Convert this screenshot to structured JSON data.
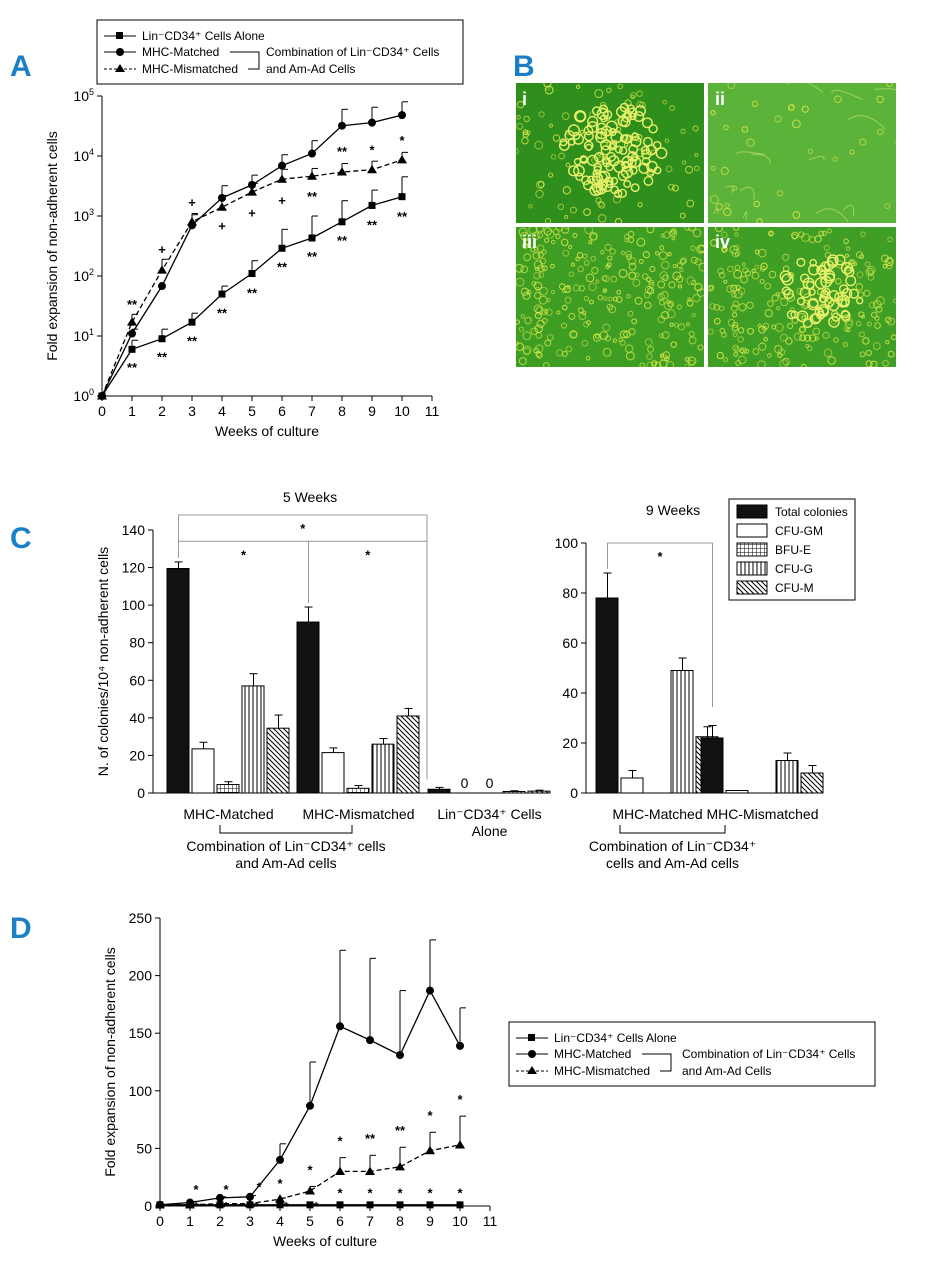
{
  "panel_letters": {
    "a": "A",
    "b": "B",
    "c": "C",
    "d": "D"
  },
  "common": {
    "series_alone": "Lin⁻CD34⁺ Cells Alone",
    "series_matched": "MHC-Matched",
    "series_mismatched": "MHC-Mismatched",
    "combination_line1": "Combination of Lin⁻CD34⁺ Cells",
    "combination_line2": "and Am-Ad Cells"
  },
  "panel_b": {
    "labels": [
      "i",
      "ii",
      "iii",
      "iv"
    ],
    "colors": {
      "bg": "#3f9e25",
      "cells": "#d8e64a",
      "divider": "#ffffff"
    }
  },
  "chart_data": [
    {
      "panel": "A",
      "type": "line",
      "yscale": "log",
      "xlabel": "Weeks of culture",
      "ylabel": "Fold expansion of non-adherent cells",
      "xlim": [
        0,
        11
      ],
      "xticks": [
        0,
        1,
        2,
        3,
        4,
        5,
        6,
        7,
        8,
        9,
        10,
        11
      ],
      "ylim": [
        1,
        100000
      ],
      "ytick_exponents": [
        0,
        1,
        2,
        3,
        4,
        5
      ],
      "series": [
        {
          "name": "Lin⁻CD34⁺ Cells Alone",
          "marker": "square",
          "dash": false,
          "x": [
            0,
            1,
            2,
            3,
            4,
            5,
            6,
            7,
            8,
            9,
            10
          ],
          "values": [
            1,
            6,
            9,
            17,
            50,
            110,
            290,
            430,
            800,
            1500,
            2100
          ],
          "err_hi": [
            1,
            8.5,
            13,
            24,
            68,
            180,
            600,
            1000,
            1800,
            2700,
            4500
          ]
        },
        {
          "name": "MHC-Matched",
          "marker": "circle",
          "dash": false,
          "x": [
            0,
            1,
            2,
            3,
            4,
            5,
            6,
            7,
            8,
            9,
            10
          ],
          "values": [
            1,
            11,
            68,
            700,
            2000,
            3300,
            6900,
            11000,
            32000,
            36000,
            48000
          ],
          "err_hi": [
            1,
            13,
            70,
            1100,
            3200,
            4800,
            10500,
            18000,
            60000,
            65000,
            80000
          ]
        },
        {
          "name": "MHC-Mismatched",
          "marker": "triangle",
          "dash": true,
          "x": [
            0,
            1,
            2,
            3,
            4,
            5,
            6,
            7,
            8,
            9,
            10
          ],
          "values": [
            1,
            17,
            125,
            800,
            1400,
            2500,
            4100,
            4600,
            5400,
            5900,
            8600
          ],
          "err_hi": [
            1,
            23,
            190,
            1050,
            2200,
            3500,
            6000,
            6200,
            7500,
            8200,
            11500
          ]
        }
      ],
      "annotations": [
        {
          "text": "**",
          "x": 1,
          "value": 24,
          "below": false
        },
        {
          "text": "+",
          "x": 2,
          "value": 200,
          "below": false
        },
        {
          "text": "+",
          "x": 3,
          "value": 1200,
          "below": false
        },
        {
          "text": "+",
          "x": 4,
          "value": 900,
          "below": true
        },
        {
          "text": "+",
          "x": 5,
          "value": 1500,
          "below": true
        },
        {
          "text": "+",
          "x": 6,
          "value": 2400,
          "below": true
        },
        {
          "text": "**",
          "x": 7,
          "value": 2800,
          "below": true
        },
        {
          "text": "**",
          "x": 8,
          "value": 8500,
          "below": false
        },
        {
          "text": "*",
          "x": 9,
          "value": 9000,
          "below": false
        },
        {
          "text": "*",
          "x": 10,
          "value": 13000,
          "below": false
        },
        {
          "text": "**",
          "x": 1,
          "value": 4,
          "below": true
        },
        {
          "text": "**",
          "x": 2,
          "value": 6,
          "below": true
        },
        {
          "text": "**",
          "x": 3,
          "value": 11,
          "below": true
        },
        {
          "text": "**",
          "x": 4,
          "value": 32,
          "below": true
        },
        {
          "text": "**",
          "x": 5,
          "value": 70,
          "below": true
        },
        {
          "text": "**",
          "x": 6,
          "value": 190,
          "below": true
        },
        {
          "text": "**",
          "x": 7,
          "value": 280,
          "below": true
        },
        {
          "text": "**",
          "x": 8,
          "value": 520,
          "below": true
        },
        {
          "text": "**",
          "x": 9,
          "value": 950,
          "below": true
        },
        {
          "text": "**",
          "x": 10,
          "value": 1300,
          "below": true
        }
      ]
    },
    {
      "panel": "C",
      "type": "bar",
      "title": "5 Weeks",
      "ylabel": "N. of colonies/10⁴ non-adherent cells",
      "ylim": [
        0,
        140
      ],
      "yticks": [
        0,
        20,
        40,
        60,
        80,
        100,
        120,
        140
      ],
      "groups": [
        "MHC-Matched",
        "MHC-Mismatched",
        "Lin⁻CD34⁺ Cells Alone"
      ],
      "group_lines": [
        [
          "MHC-Matched"
        ],
        [
          "MHC-Mismatched"
        ],
        [
          "Lin⁻CD34⁺ Cells",
          "Alone"
        ]
      ],
      "bracket_label": [
        "Combination of Lin⁻CD34⁺ cells",
        "and Am-Ad cells"
      ],
      "series": [
        {
          "name": "Total colonies",
          "values": [
            119.5,
            91,
            2
          ],
          "err": [
            3.5,
            8,
            1
          ]
        },
        {
          "name": "CFU-GM",
          "values": [
            23.5,
            21.5,
            0
          ],
          "err": [
            3.5,
            2.5,
            0
          ]
        },
        {
          "name": "BFU-E",
          "values": [
            4.5,
            2.5,
            0
          ],
          "err": [
            1.5,
            1.5,
            0
          ]
        },
        {
          "name": "CFU-G",
          "values": [
            57,
            26,
            0.8
          ],
          "err": [
            6.5,
            3,
            0.4
          ]
        },
        {
          "name": "CFU-M",
          "values": [
            34.5,
            41,
            1
          ],
          "err": [
            7,
            4,
            0.5
          ]
        }
      ],
      "zero_labels": [
        "0",
        "0"
      ],
      "significance": [
        {
          "text": "*",
          "from": 0,
          "to": 2,
          "level": 148
        },
        {
          "text": "*",
          "from": 0,
          "to": 1,
          "level": 134
        },
        {
          "text": "*",
          "from": 1,
          "to": 2,
          "level": 134
        }
      ]
    },
    {
      "panel": "C",
      "type": "bar",
      "title": "9 Weeks",
      "ylim": [
        0,
        100
      ],
      "yticks": [
        0,
        20,
        40,
        60,
        80,
        100
      ],
      "groups": [
        "MHC-Matched",
        "MHC-Mismatched"
      ],
      "bracket_label": [
        "Combination of Lin⁻CD34⁺",
        "cells and Am-Ad cells"
      ],
      "series": [
        {
          "name": "Total colonies",
          "values": [
            78,
            22
          ],
          "err": [
            10,
            5
          ]
        },
        {
          "name": "CFU-GM",
          "values": [
            6,
            1
          ],
          "err": [
            3,
            0
          ]
        },
        {
          "name": "BFU-E",
          "values": [
            0,
            0
          ],
          "err": [
            0,
            0
          ]
        },
        {
          "name": "CFU-G",
          "values": [
            49,
            13
          ],
          "err": [
            5,
            3
          ]
        },
        {
          "name": "CFU-M",
          "values": [
            22.5,
            8
          ],
          "err": [
            4,
            3
          ]
        }
      ],
      "legend": [
        "Total colonies",
        "CFU-GM",
        "BFU-E",
        "CFU-G",
        "CFU-M"
      ],
      "significance": [
        {
          "text": "*",
          "from": 0,
          "to": 1,
          "level": 100
        }
      ]
    },
    {
      "panel": "D",
      "type": "line",
      "xlabel": "Weeks of culture",
      "ylabel": "Fold expansion of non-adherent cells",
      "xlim": [
        0,
        11
      ],
      "xticks": [
        0,
        1,
        2,
        3,
        4,
        5,
        6,
        7,
        8,
        9,
        10,
        11
      ],
      "ylim": [
        0,
        250
      ],
      "yticks": [
        0,
        50,
        100,
        150,
        200,
        250
      ],
      "series": [
        {
          "name": "Lin⁻CD34⁺ Cells Alone",
          "marker": "square",
          "dash": false,
          "x": [
            0,
            1,
            2,
            3,
            4,
            5,
            6,
            7,
            8,
            9,
            10
          ],
          "values": [
            1,
            1,
            1,
            1,
            1,
            1,
            1,
            1,
            1,
            1,
            1
          ],
          "err_hi": [
            1,
            1,
            1,
            1,
            1,
            1,
            1,
            1,
            1,
            1,
            1
          ]
        },
        {
          "name": "MHC-Matched",
          "marker": "circle",
          "dash": false,
          "x": [
            0,
            1,
            2,
            3,
            4,
            5,
            6,
            7,
            8,
            9,
            10
          ],
          "values": [
            1,
            3,
            7,
            8,
            40,
            87,
            156,
            144,
            131,
            187,
            139
          ],
          "err_hi": [
            1,
            4,
            8,
            9,
            54,
            125,
            222,
            215,
            187,
            231,
            172
          ]
        },
        {
          "name": "MHC-Mismatched",
          "marker": "triangle",
          "dash": true,
          "x": [
            0,
            1,
            2,
            3,
            4,
            5,
            6,
            7,
            8,
            9,
            10
          ],
          "values": [
            1,
            1,
            2,
            2,
            6,
            13,
            30,
            30,
            34,
            48,
            53
          ],
          "err_hi": [
            1,
            1,
            2,
            2,
            7,
            17,
            42,
            44,
            51,
            64,
            78
          ]
        }
      ],
      "annotations": [
        {
          "text": "*",
          "x": 1.2,
          "value": 7
        },
        {
          "text": "*",
          "x": 2.2,
          "value": 7
        },
        {
          "text": "*",
          "x": 3.3,
          "value": 9
        },
        {
          "text": "*",
          "x": 4,
          "value": 12
        },
        {
          "text": "*",
          "x": 5,
          "value": 24
        },
        {
          "text": "*",
          "x": 6,
          "value": 49
        },
        {
          "text": "**",
          "x": 7,
          "value": 51
        },
        {
          "text": "**",
          "x": 8,
          "value": 58
        },
        {
          "text": "*",
          "x": 9,
          "value": 71
        },
        {
          "text": "*",
          "x": 10,
          "value": 85
        },
        {
          "text": "*",
          "x": 1.2,
          "value": -8
        },
        {
          "text": "*",
          "x": 2.2,
          "value": -8
        },
        {
          "text": "*",
          "x": 3.2,
          "value": -8
        },
        {
          "text": "*",
          "x": 4.2,
          "value": -8
        },
        {
          "text": "*",
          "x": 5.2,
          "value": -8
        },
        {
          "text": "*",
          "x": 6,
          "value": 4
        },
        {
          "text": "*",
          "x": 7,
          "value": 4
        },
        {
          "text": "*",
          "x": 8,
          "value": 4
        },
        {
          "text": "*",
          "x": 9,
          "value": 4
        },
        {
          "text": "*",
          "x": 10,
          "value": 4
        }
      ]
    }
  ]
}
